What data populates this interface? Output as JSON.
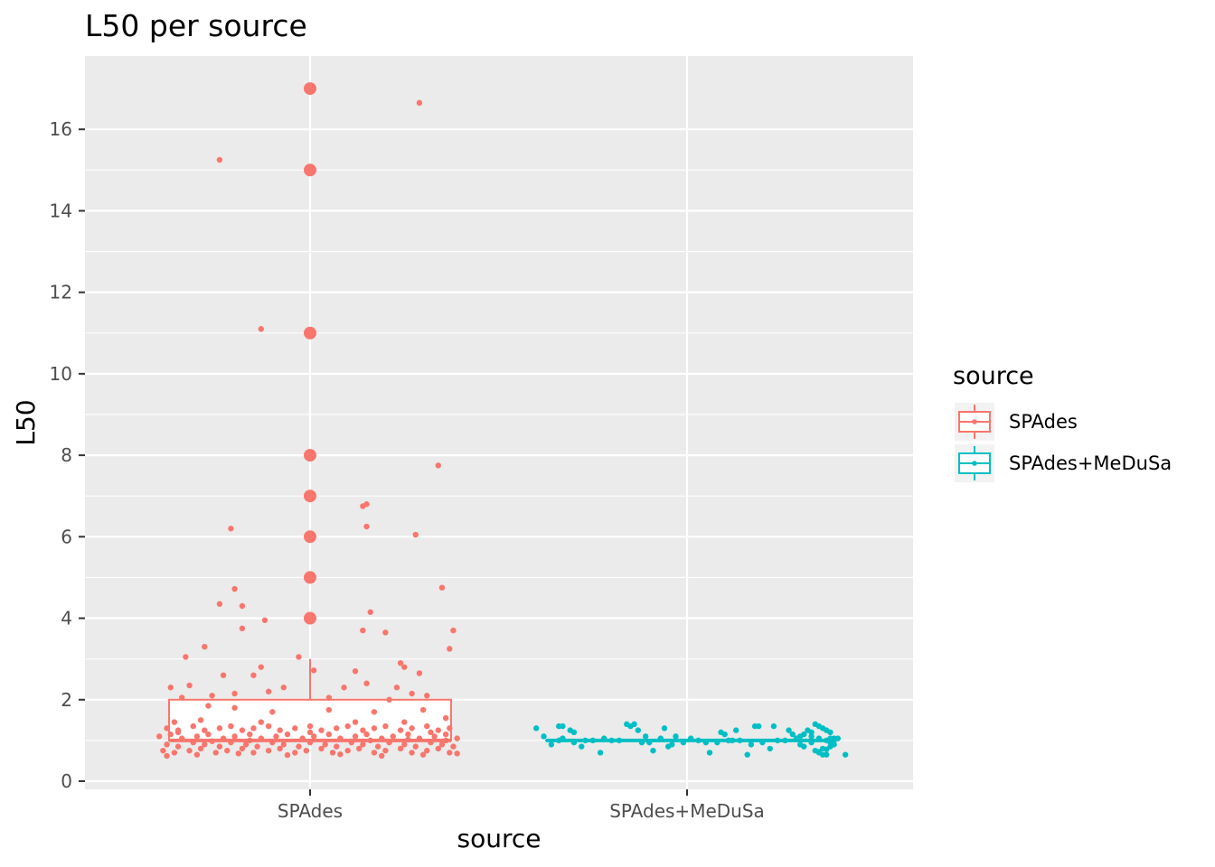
{
  "chart_data": {
    "type": "boxplot",
    "title": "L50 per source",
    "xlabel": "source",
    "ylabel": "L50",
    "categories": [
      "SPAdes",
      "SPAdes+MeDuSa"
    ],
    "ylim": [
      -0.2,
      17.8
    ],
    "yticks": [
      0,
      2,
      4,
      6,
      8,
      10,
      12,
      14,
      16
    ],
    "grid": true,
    "legend": {
      "title": "source",
      "placement": "right",
      "entries": [
        "SPAdes",
        "SPAdes+MeDuSa"
      ]
    },
    "colors": {
      "SPAdes": "#F8766D",
      "SPAdes+MeDuSa": "#00BFC4"
    },
    "boxes": [
      {
        "category": "SPAdes",
        "min": 1,
        "q1": 1,
        "median": 1,
        "q3": 2,
        "max": 3,
        "outliers": [
          4,
          5,
          6,
          7,
          8,
          11,
          15,
          17
        ]
      },
      {
        "category": "SPAdes+MeDuSa",
        "min": 1,
        "q1": 1,
        "median": 1,
        "q3": 1,
        "max": 1,
        "outliers": []
      }
    ],
    "jitter_points": {
      "SPAdes": [
        [
          -0.24,
          15.25
        ],
        [
          -0.13,
          11.1
        ],
        [
          0.29,
          16.65
        ],
        [
          0.34,
          7.75
        ],
        [
          0.15,
          6.8
        ],
        [
          0.14,
          6.75
        ],
        [
          0.15,
          6.25
        ],
        [
          -0.21,
          6.2
        ],
        [
          0.28,
          6.05
        ],
        [
          0.35,
          4.75
        ],
        [
          -0.2,
          4.72
        ],
        [
          -0.24,
          4.35
        ],
        [
          -0.18,
          4.3
        ],
        [
          0.16,
          4.15
        ],
        [
          -0.12,
          3.95
        ],
        [
          -0.18,
          3.75
        ],
        [
          0.14,
          3.7
        ],
        [
          0.2,
          3.65
        ],
        [
          0.38,
          3.7
        ],
        [
          0.37,
          3.25
        ],
        [
          -0.28,
          3.3
        ],
        [
          -0.33,
          3.05
        ],
        [
          -0.03,
          3.05
        ],
        [
          0.24,
          2.9
        ],
        [
          0.25,
          2.8
        ],
        [
          -0.13,
          2.8
        ],
        [
          0.01,
          2.72
        ],
        [
          0.12,
          2.7
        ],
        [
          0.29,
          2.65
        ],
        [
          -0.23,
          2.6
        ],
        [
          -0.15,
          2.6
        ],
        [
          0.15,
          2.4
        ],
        [
          -0.32,
          2.35
        ],
        [
          -0.37,
          2.3
        ],
        [
          -0.07,
          2.3
        ],
        [
          0.09,
          2.3
        ],
        [
          0.23,
          2.3
        ],
        [
          -0.11,
          2.2
        ],
        [
          -0.26,
          2.1
        ],
        [
          -0.2,
          2.15
        ],
        [
          0.27,
          2.15
        ],
        [
          0.31,
          2.1
        ],
        [
          -0.34,
          2.05
        ],
        [
          0.05,
          2.05
        ],
        [
          0.21,
          2.0
        ],
        [
          -0.27,
          1.85
        ],
        [
          -0.2,
          1.8
        ],
        [
          -0.1,
          1.7
        ],
        [
          0.05,
          1.75
        ],
        [
          0.17,
          1.7
        ],
        [
          0.3,
          1.75
        ],
        [
          -0.36,
          1.45
        ],
        [
          -0.29,
          1.5
        ],
        [
          -0.13,
          1.45
        ],
        [
          0.12,
          1.45
        ],
        [
          0.25,
          1.45
        ],
        [
          0.36,
          1.55
        ],
        [
          -0.38,
          1.3
        ],
        [
          -0.35,
          1.25
        ],
        [
          -0.31,
          1.35
        ],
        [
          -0.28,
          1.25
        ],
        [
          -0.24,
          1.3
        ],
        [
          -0.21,
          1.35
        ],
        [
          -0.18,
          1.25
        ],
        [
          -0.15,
          1.3
        ],
        [
          -0.11,
          1.35
        ],
        [
          -0.08,
          1.25
        ],
        [
          -0.04,
          1.3
        ],
        [
          0.0,
          1.35
        ],
        [
          0.03,
          1.25
        ],
        [
          0.07,
          1.3
        ],
        [
          0.1,
          1.35
        ],
        [
          0.14,
          1.25
        ],
        [
          0.17,
          1.3
        ],
        [
          0.2,
          1.35
        ],
        [
          0.24,
          1.25
        ],
        [
          0.27,
          1.3
        ],
        [
          0.31,
          1.35
        ],
        [
          0.34,
          1.25
        ],
        [
          0.37,
          1.3
        ],
        [
          -0.4,
          1.1
        ],
        [
          -0.37,
          1.15
        ],
        [
          -0.34,
          1.05
        ],
        [
          -0.3,
          1.1
        ],
        [
          -0.27,
          1.15
        ],
        [
          -0.23,
          1.05
        ],
        [
          -0.2,
          1.1
        ],
        [
          -0.16,
          1.15
        ],
        [
          -0.13,
          1.05
        ],
        [
          -0.09,
          1.1
        ],
        [
          -0.06,
          1.15
        ],
        [
          -0.02,
          1.05
        ],
        [
          0.01,
          1.1
        ],
        [
          0.05,
          1.15
        ],
        [
          0.08,
          1.05
        ],
        [
          0.12,
          1.1
        ],
        [
          0.15,
          1.15
        ],
        [
          0.19,
          1.05
        ],
        [
          0.22,
          1.1
        ],
        [
          0.26,
          1.15
        ],
        [
          0.29,
          1.05
        ],
        [
          0.33,
          1.1
        ],
        [
          0.36,
          1.15
        ],
        [
          0.39,
          1.05
        ],
        [
          -0.38,
          0.9
        ],
        [
          -0.35,
          0.85
        ],
        [
          -0.31,
          0.95
        ],
        [
          -0.28,
          0.9
        ],
        [
          -0.24,
          0.85
        ],
        [
          -0.21,
          0.95
        ],
        [
          -0.17,
          0.9
        ],
        [
          -0.14,
          0.85
        ],
        [
          -0.1,
          0.95
        ],
        [
          -0.07,
          0.9
        ],
        [
          -0.03,
          0.85
        ],
        [
          0.0,
          0.95
        ],
        [
          0.04,
          0.9
        ],
        [
          0.07,
          0.85
        ],
        [
          0.11,
          0.95
        ],
        [
          0.14,
          0.9
        ],
        [
          0.18,
          0.85
        ],
        [
          0.21,
          0.95
        ],
        [
          0.25,
          0.9
        ],
        [
          0.28,
          0.85
        ],
        [
          0.32,
          0.95
        ],
        [
          0.35,
          0.9
        ],
        [
          0.38,
          0.85
        ],
        [
          -0.39,
          0.75
        ],
        [
          -0.36,
          0.7
        ],
        [
          -0.32,
          0.75
        ],
        [
          -0.29,
          0.8
        ],
        [
          -0.25,
          0.7
        ],
        [
          -0.22,
          0.75
        ],
        [
          -0.18,
          0.8
        ],
        [
          -0.15,
          0.7
        ],
        [
          -0.11,
          0.75
        ],
        [
          -0.08,
          0.8
        ],
        [
          -0.04,
          0.7
        ],
        [
          -0.01,
          0.75
        ],
        [
          0.03,
          0.8
        ],
        [
          0.06,
          0.7
        ],
        [
          0.1,
          0.75
        ],
        [
          0.13,
          0.8
        ],
        [
          0.17,
          0.7
        ],
        [
          0.2,
          0.75
        ],
        [
          0.24,
          0.8
        ],
        [
          0.27,
          0.7
        ],
        [
          0.31,
          0.75
        ],
        [
          0.34,
          0.8
        ],
        [
          0.37,
          0.7
        ],
        [
          -0.38,
          0.62
        ],
        [
          -0.3,
          0.65
        ],
        [
          -0.19,
          0.68
        ],
        [
          -0.06,
          0.64
        ],
        [
          0.08,
          0.66
        ],
        [
          0.19,
          0.62
        ],
        [
          0.3,
          0.65
        ],
        [
          0.39,
          0.68
        ],
        [
          -0.35,
          1.2
        ],
        [
          0.0,
          1.2
        ],
        [
          0.32,
          1.2
        ],
        [
          -0.16,
          1.0
        ],
        [
          0.16,
          1.0
        ],
        [
          0.36,
          1.0
        ],
        [
          -0.26,
          0.98
        ],
        [
          0.26,
          1.02
        ]
      ],
      "SPAdes+MeDuSa": [
        [
          -0.4,
          1.3
        ],
        [
          -0.38,
          1.1
        ],
        [
          -0.36,
          0.9
        ],
        [
          -0.34,
          1.0
        ],
        [
          -0.33,
          1.05
        ],
        [
          -0.31,
          1.25
        ],
        [
          -0.3,
          0.95
        ],
        [
          -0.34,
          1.35
        ],
        [
          -0.33,
          1.35
        ],
        [
          -0.3,
          1.2
        ],
        [
          -0.28,
          0.85
        ],
        [
          -0.27,
          1.0
        ],
        [
          -0.25,
          1.0
        ],
        [
          -0.23,
          0.7
        ],
        [
          -0.22,
          1.05
        ],
        [
          -0.2,
          1.0
        ],
        [
          -0.18,
          1.0
        ],
        [
          -0.16,
          1.4
        ],
        [
          -0.15,
          1.35
        ],
        [
          -0.14,
          1.4
        ],
        [
          -0.13,
          1.25
        ],
        [
          -0.12,
          0.95
        ],
        [
          -0.11,
          1.1
        ],
        [
          -0.1,
          0.95
        ],
        [
          -0.09,
          0.75
        ],
        [
          -0.07,
          1.05
        ],
        [
          -0.06,
          1.3
        ],
        [
          -0.05,
          0.85
        ],
        [
          -0.04,
          0.9
        ],
        [
          -0.03,
          1.1
        ],
        [
          -0.01,
          0.95
        ],
        [
          0.01,
          1.05
        ],
        [
          0.03,
          1.0
        ],
        [
          0.05,
          0.95
        ],
        [
          0.06,
          0.7
        ],
        [
          0.08,
          0.95
        ],
        [
          0.09,
          1.2
        ],
        [
          0.1,
          1.15
        ],
        [
          0.11,
          1.0
        ],
        [
          0.12,
          1.0
        ],
        [
          0.13,
          1.25
        ],
        [
          0.14,
          1.0
        ],
        [
          0.16,
          0.65
        ],
        [
          0.17,
          0.9
        ],
        [
          0.18,
          1.35
        ],
        [
          0.19,
          1.35
        ],
        [
          0.2,
          0.95
        ],
        [
          0.22,
          0.8
        ],
        [
          0.23,
          1.35
        ],
        [
          0.24,
          1.0
        ],
        [
          0.26,
          1.0
        ],
        [
          0.27,
          1.25
        ],
        [
          0.28,
          1.15
        ],
        [
          0.29,
          1.05
        ],
        [
          0.3,
          0.9
        ],
        [
          0.31,
          0.85
        ],
        [
          0.32,
          1.25
        ],
        [
          0.33,
          0.95
        ],
        [
          0.35,
          0.7
        ],
        [
          0.36,
          0.65
        ],
        [
          0.37,
          0.65
        ],
        [
          0.38,
          0.85
        ],
        [
          0.39,
          1.0
        ],
        [
          0.3,
          1.1
        ],
        [
          0.31,
          1.15
        ],
        [
          0.33,
          1.2
        ],
        [
          0.33,
          1.1
        ],
        [
          0.34,
          1.4
        ],
        [
          0.35,
          1.35
        ],
        [
          0.36,
          1.3
        ],
        [
          0.37,
          1.25
        ],
        [
          0.38,
          1.2
        ],
        [
          0.35,
          1.05
        ],
        [
          0.37,
          1.0
        ],
        [
          0.38,
          0.95
        ],
        [
          0.39,
          0.9
        ],
        [
          0.36,
          0.8
        ],
        [
          0.34,
          0.75
        ],
        [
          0.35,
          0.72
        ],
        [
          0.37,
          0.78
        ],
        [
          0.38,
          1.05
        ],
        [
          0.39,
          1.05
        ],
        [
          0.4,
          1.05
        ],
        [
          0.42,
          0.65
        ]
      ]
    }
  }
}
